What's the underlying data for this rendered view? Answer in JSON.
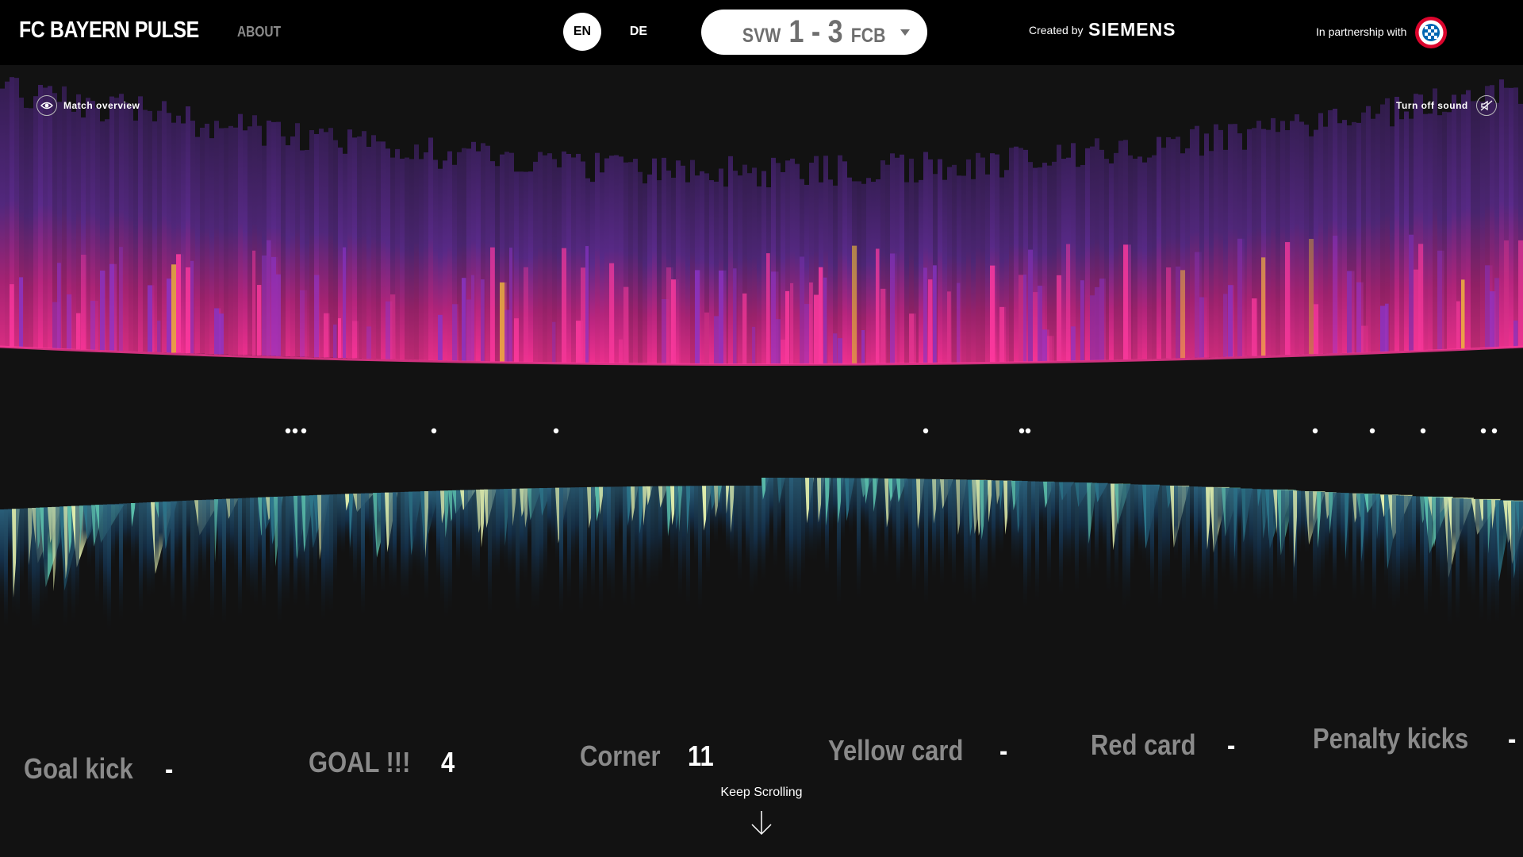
{
  "header": {
    "brand": "FC BAYERN PULSE",
    "about": "ABOUT",
    "lang_en": "EN",
    "lang_de": "DE",
    "match": {
      "home": "SVW",
      "score": "1 - 3",
      "away": "FCB"
    },
    "created_by": "Created by",
    "creator": "SIEMENS",
    "partnership": "In partnership with",
    "partner_logo_icon": "fc-bayern-logo-icon"
  },
  "controls": {
    "overview_label": "Match overview",
    "overview_icon": "eye-icon",
    "sound_label": "Turn off sound",
    "sound_icon": "sound-off-icon"
  },
  "stats": [
    {
      "label": "Goal kick",
      "value": "-"
    },
    {
      "label": "GOAL !!!",
      "value": "4"
    },
    {
      "label": "Corner",
      "value": "11"
    },
    {
      "label": "Yellow card",
      "value": "-"
    },
    {
      "label": "Red card",
      "value": "-"
    },
    {
      "label": "Penalty kicks",
      "value": "-"
    }
  ],
  "footer": {
    "keep_scrolling": "Keep Scrolling",
    "arrow_icon": "arrow-down-icon"
  },
  "colors": {
    "top_wave": [
      "#3a1f5c",
      "#7a2a8e",
      "#e6208f",
      "#f0c23a"
    ],
    "bottom_wave": [
      "#0c1a2e",
      "#1f4a6b",
      "#3aa0a0",
      "#e9f5b0"
    ],
    "background": "#121212",
    "header_bg": "#000000"
  }
}
